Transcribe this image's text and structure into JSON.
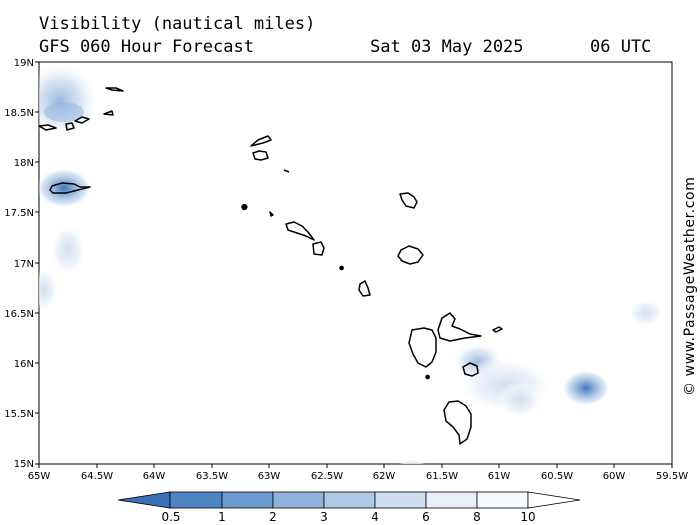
{
  "header": {
    "title": "Visibility (nautical miles)",
    "model": "GFS 060 Hour Forecast",
    "date": "Sat 03 May 2025",
    "time": "06 UTC"
  },
  "watermark": "© www.PassageWeather.com",
  "axes": {
    "lat_labels": [
      "15N",
      "15.5N",
      "16N",
      "16.5N",
      "17N",
      "17.5N",
      "18N",
      "18.5N",
      "19N"
    ],
    "lon_labels": [
      "65W",
      "64.5W",
      "64W",
      "63.5W",
      "63W",
      "62.5W",
      "62W",
      "61.5W",
      "61W",
      "60.5W",
      "60W",
      "59.5W"
    ],
    "lat_range": [
      15,
      19
    ],
    "lon_range": [
      -65,
      -59.5
    ]
  },
  "legend": {
    "labels": [
      "0.5",
      "1",
      "2",
      "3",
      "4",
      "6",
      "8",
      "10"
    ],
    "colors": [
      "#3b6fb7",
      "#4f84c4",
      "#6d9bd1",
      "#8fb2dc",
      "#b0c9e7",
      "#cfdef1",
      "#e8eff8",
      "#ffffff"
    ]
  },
  "colors": {
    "low_visibility": "#3b6fb7",
    "mid_visibility": "#8fb2dc",
    "high_visibility": "#ffffff",
    "coastline": "#000000"
  },
  "islands": [
    "virgin-islands",
    "vieques",
    "st-croix",
    "anguilla",
    "st-martin",
    "st-barthelemy",
    "saba",
    "st-eustatius",
    "st-kitts",
    "nevis",
    "barbuda",
    "antigua",
    "redonda",
    "montserrat",
    "guadeloupe-basse-terre",
    "guadeloupe-grande-terre",
    "la-desirade",
    "marie-galante",
    "les-saintes",
    "dominica"
  ]
}
